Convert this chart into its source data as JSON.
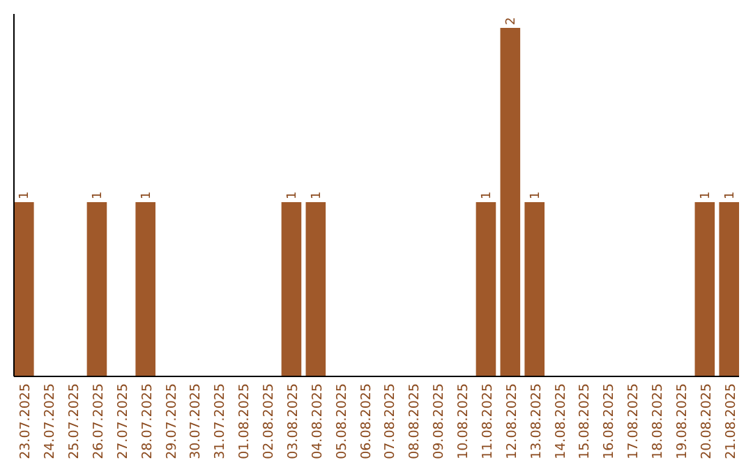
{
  "chart_data": {
    "type": "bar",
    "categories": [
      "23.07.2025",
      "24.07.2025",
      "25.07.2025",
      "26.07.2025",
      "27.07.2025",
      "28.07.2025",
      "29.07.2025",
      "30.07.2025",
      "31.07.2025",
      "01.08.2025",
      "02.08.2025",
      "03.08.2025",
      "04.08.2025",
      "05.08.2025",
      "06.08.2025",
      "07.08.2025",
      "08.08.2025",
      "09.08.2025",
      "10.08.2025",
      "11.08.2025",
      "12.08.2025",
      "13.08.2025",
      "14.08.2025",
      "15.08.2025",
      "16.08.2025",
      "17.08.2025",
      "18.08.2025",
      "19.08.2025",
      "20.08.2025",
      "21.08.2025"
    ],
    "values": [
      1,
      0,
      0,
      1,
      0,
      1,
      0,
      0,
      0,
      0,
      0,
      1,
      1,
      0,
      0,
      0,
      0,
      0,
      0,
      1,
      2,
      1,
      0,
      0,
      0,
      0,
      0,
      0,
      1,
      1
    ],
    "color": "#a0592a",
    "value_labels": [
      "1",
      null,
      null,
      "1",
      null,
      "1",
      null,
      null,
      null,
      null,
      null,
      "1",
      "1",
      null,
      null,
      null,
      null,
      null,
      null,
      "1",
      "2",
      "1",
      null,
      null,
      null,
      null,
      null,
      null,
      "1",
      "1"
    ]
  }
}
